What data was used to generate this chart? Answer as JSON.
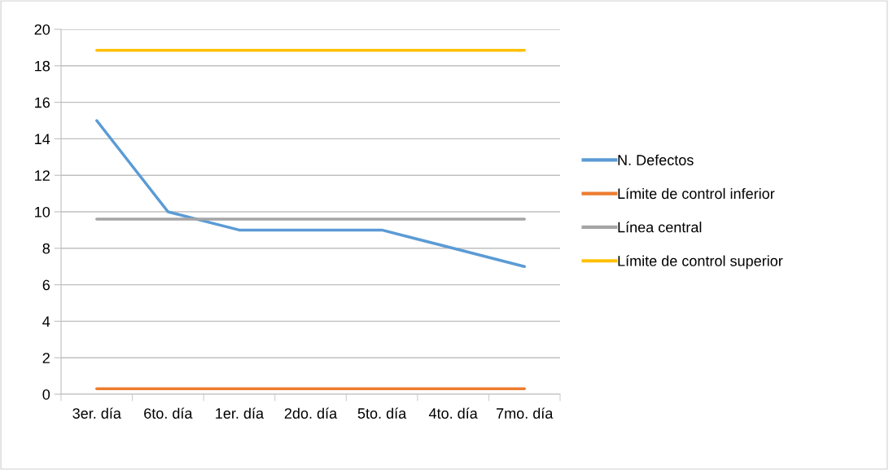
{
  "chart_data": {
    "type": "line",
    "categories": [
      "3er. día",
      "6to. día",
      "1er. día",
      "2do. día",
      "5to. día",
      "4to. día",
      "7mo. día"
    ],
    "series": [
      {
        "name": "N. Defectos",
        "color": "#5b9bd5",
        "values": [
          15,
          10,
          9,
          9,
          9,
          8,
          7
        ]
      },
      {
        "name": "Límite de control inferior",
        "color": "#ed7d31",
        "values": [
          0.3,
          0.3,
          0.3,
          0.3,
          0.3,
          0.3,
          0.3
        ]
      },
      {
        "name": "Línea central",
        "color": "#a5a5a5",
        "values": [
          9.6,
          9.6,
          9.6,
          9.6,
          9.6,
          9.6,
          9.6
        ]
      },
      {
        "name": "Límite de control superior",
        "color": "#ffc000",
        "values": [
          18.85,
          18.85,
          18.85,
          18.85,
          18.85,
          18.85,
          18.85
        ]
      }
    ],
    "ylim": [
      0,
      20
    ],
    "yticks": [
      0,
      2,
      4,
      6,
      8,
      10,
      12,
      14,
      16,
      18,
      20
    ],
    "grid": "y",
    "legend": "right",
    "marker": "none",
    "line_style": "solid"
  }
}
